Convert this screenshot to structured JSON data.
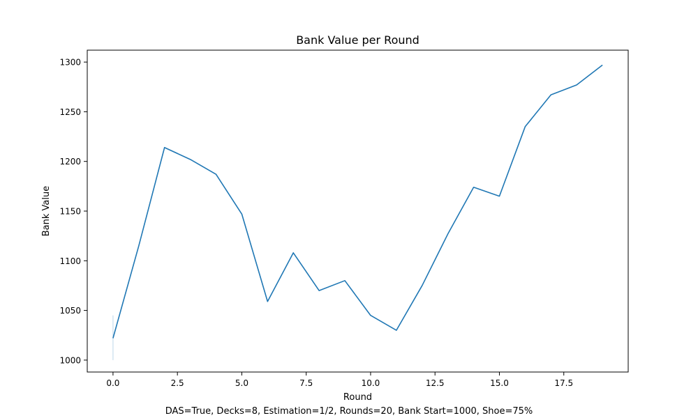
{
  "chart_data": {
    "type": "line",
    "title": "Bank Value per Round",
    "xlabel": "Round",
    "ylabel": "Bank Value",
    "footnote": "DAS=True, Decks=8, Estimation=1/2, Rounds=20, Bank Start=1000, Shoe=75%",
    "xlim": [
      -1.0,
      20.0
    ],
    "ylim": [
      988,
      1312
    ],
    "xticks": [
      0.0,
      2.5,
      5.0,
      7.5,
      10.0,
      12.5,
      15.0,
      17.5
    ],
    "xtick_labels": [
      "0.0",
      "2.5",
      "5.0",
      "7.5",
      "10.0",
      "12.5",
      "15.0",
      "17.5"
    ],
    "yticks": [
      1000,
      1050,
      1100,
      1150,
      1200,
      1250,
      1300
    ],
    "ytick_labels": [
      "1000",
      "1050",
      "1100",
      "1150",
      "1200",
      "1250",
      "1300"
    ],
    "grid": false,
    "legend": "none",
    "line_color": "#1f77b4",
    "series": [
      {
        "x": [
          0,
          1,
          2,
          3,
          4,
          5,
          6,
          7,
          8,
          9,
          10,
          11,
          12,
          13,
          14,
          15,
          16,
          17,
          18,
          19
        ],
        "values": [
          1022,
          1115,
          1214,
          1202,
          1187,
          1147,
          1059,
          1108,
          1070,
          1080,
          1045,
          1030,
          1075,
          1127,
          1174,
          1165,
          1235,
          1267,
          1277,
          1297
        ]
      }
    ],
    "error_band": {
      "x": 0,
      "low": 1000,
      "high": 1045
    }
  }
}
